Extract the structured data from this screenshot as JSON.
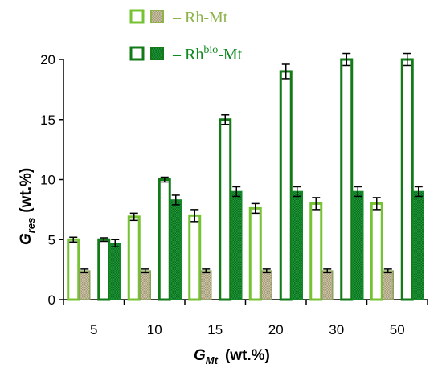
{
  "chart_data": {
    "type": "bar",
    "categories": [
      "5",
      "10",
      "15",
      "20",
      "30",
      "50"
    ],
    "xlabel": {
      "main": "G",
      "sub": "Mt",
      "unit": "(wt.%)"
    },
    "ylabel": {
      "main": "G",
      "sub": "res",
      "unit": "(wt.%)"
    },
    "ylim": [
      0,
      20
    ],
    "yticks": [
      "0",
      "5",
      "10",
      "15",
      "20"
    ],
    "grid": false,
    "legend_placement": "top",
    "legend": [
      {
        "prefix": "– ",
        "base": "Rh",
        "sup": "",
        "suffix": "-Mt",
        "color": "#8db34a"
      },
      {
        "prefix": "– ",
        "base": "Rh",
        "sup": "bio",
        "suffix": "-Mt",
        "color": "#0f8a1f"
      }
    ],
    "series": [
      {
        "values": [
          5.0,
          6.9,
          7.0,
          7.6,
          8.0,
          8.0
        ],
        "errors": [
          0.2,
          0.3,
          0.5,
          0.4,
          0.5,
          0.5
        ],
        "style": "open",
        "color": "#77c232"
      },
      {
        "values": [
          2.4,
          2.4,
          2.4,
          2.4,
          2.4,
          2.4
        ],
        "errors": [
          0.15,
          0.15,
          0.15,
          0.15,
          0.15,
          0.15
        ],
        "style": "hatched",
        "color": "#8aa25e"
      },
      {
        "values": [
          5.0,
          10.0,
          15.0,
          19.0,
          20.0,
          20.0
        ],
        "errors": [
          0.15,
          0.2,
          0.4,
          0.6,
          0.5,
          0.5
        ],
        "style": "open",
        "color": "#127a16"
      },
      {
        "values": [
          4.7,
          8.3,
          9.0,
          9.0,
          9.0,
          9.0
        ],
        "errors": [
          0.3,
          0.4,
          0.4,
          0.4,
          0.4,
          0.4
        ],
        "style": "hatched",
        "color": "#138a2a"
      }
    ]
  }
}
